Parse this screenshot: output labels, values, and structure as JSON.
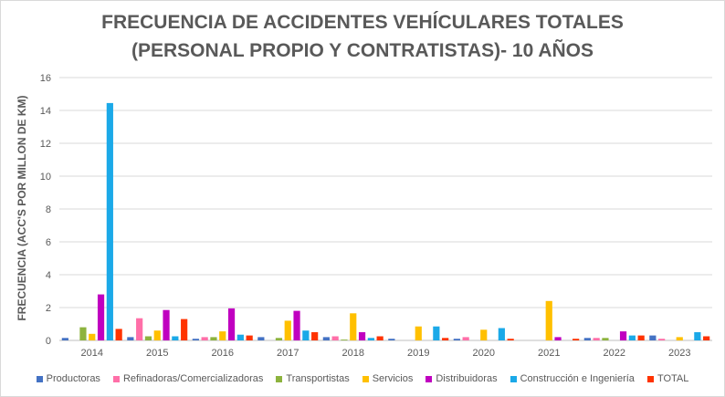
{
  "chart_data": {
    "type": "bar",
    "title_line1": "FRECUENCIA DE ACCIDENTES VEHÍCULARES TOTALES",
    "title_line2": "(PERSONAL PROPIO Y CONTRATISTAS)- 10 AÑOS",
    "xlabel": "",
    "ylabel": "FRECUENCIA (ACC'S POR MILLON DE KM)",
    "ylim": [
      0,
      16
    ],
    "yticks": [
      0,
      2,
      4,
      6,
      8,
      10,
      12,
      14,
      16
    ],
    "grid": true,
    "legend_position": "bottom",
    "categories": [
      "2014",
      "2015",
      "2016",
      "2017",
      "2018",
      "2019",
      "2020",
      "2021",
      "2022",
      "2023"
    ],
    "series": [
      {
        "name": "Productoras",
        "color": "#4472C4",
        "values": [
          0.15,
          0.2,
          0.1,
          0.2,
          0.2,
          0.1,
          0.1,
          0.0,
          0.15,
          0.3
        ]
      },
      {
        "name": "Refinadoras/Comercializadoras",
        "color": "#FF6FA8",
        "values": [
          0.0,
          1.35,
          0.2,
          0.0,
          0.25,
          0.0,
          0.2,
          0.0,
          0.15,
          0.1
        ]
      },
      {
        "name": "Transportistas",
        "color": "#8DB33E",
        "values": [
          0.8,
          0.25,
          0.2,
          0.15,
          0.05,
          0.0,
          0.0,
          0.0,
          0.15,
          0.0
        ]
      },
      {
        "name": "Servicios",
        "color": "#FFC000",
        "values": [
          0.4,
          0.6,
          0.55,
          1.2,
          1.65,
          0.85,
          0.65,
          2.4,
          0.0,
          0.2
        ]
      },
      {
        "name": "Distribuidoras",
        "color": "#C000C0",
        "values": [
          2.8,
          1.85,
          1.95,
          1.8,
          0.5,
          0.0,
          0.0,
          0.2,
          0.55,
          0.0
        ]
      },
      {
        "name": "Construcción e Ingeniería",
        "color": "#1BA9E8",
        "values": [
          14.45,
          0.25,
          0.35,
          0.6,
          0.15,
          0.85,
          0.75,
          0.0,
          0.3,
          0.5
        ]
      },
      {
        "name": "TOTAL",
        "color": "#FF3300",
        "values": [
          0.7,
          1.3,
          0.3,
          0.5,
          0.25,
          0.15,
          0.1,
          0.1,
          0.3,
          0.25
        ]
      }
    ]
  }
}
